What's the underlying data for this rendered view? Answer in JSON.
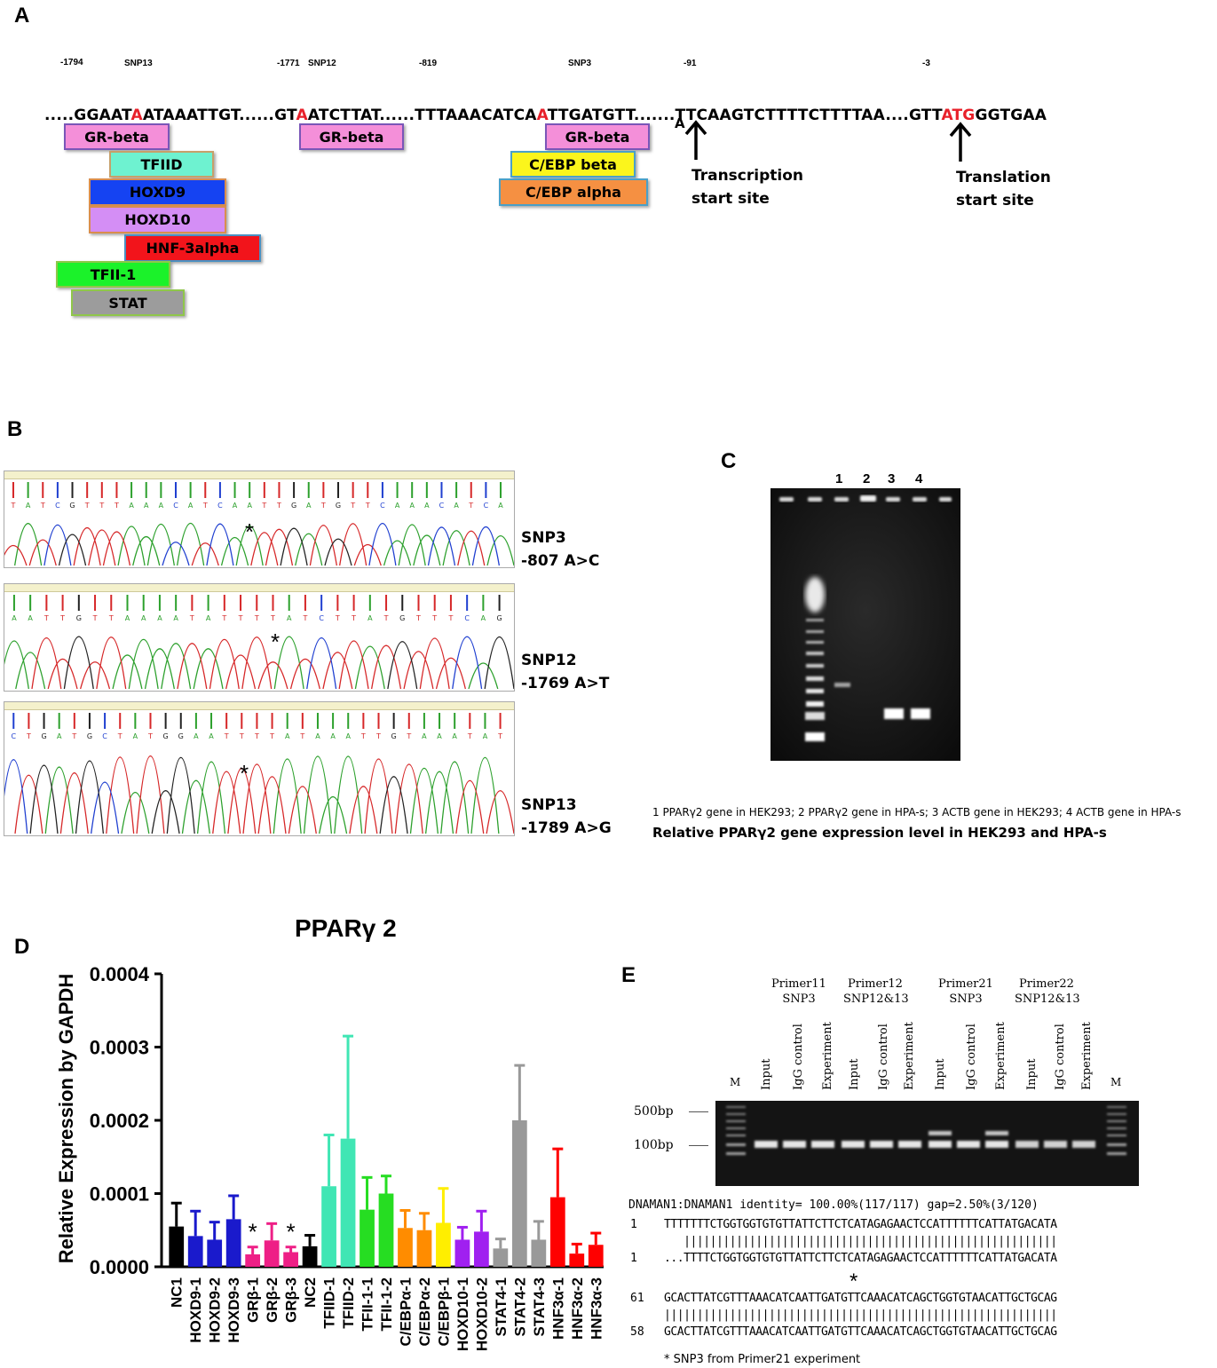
{
  "panelA": {
    "label": "A",
    "positions": [
      {
        "text": "-1794"
      },
      {
        "text": "SNP13"
      },
      {
        "text": "-1771"
      },
      {
        "text": "SNP12"
      },
      {
        "text": "-819"
      },
      {
        "text": "SNP3"
      },
      {
        "text": "-91"
      },
      {
        "text": "-3"
      }
    ],
    "sequence": [
      {
        "text": ".....GGAAT",
        "hl": false
      },
      {
        "text": "A",
        "hl": true
      },
      {
        "text": "ATAAATTGT......GT",
        "hl": false
      },
      {
        "text": "A",
        "hl": true
      },
      {
        "text": "ATCTTAT......TTTAAACATCA",
        "hl": false
      },
      {
        "text": "A",
        "hl": true
      },
      {
        "text": "TTGATGTT.......TTCAAGTCTTTTCTTTTAA....GTT",
        "hl": false
      },
      {
        "text": "ATG",
        "hl": true
      },
      {
        "text": "GGTGAA",
        "hl": false
      }
    ],
    "boxes": [
      {
        "label": "GR-beta",
        "color": "#f48fd9",
        "border": "#7a56b8"
      },
      {
        "label": "TFIID",
        "color": "#6ef2d0",
        "border": "#c7a06a"
      },
      {
        "label": "HOXD9",
        "color": "#1543f2",
        "border": "#d98e4e"
      },
      {
        "label": "HOXD10",
        "color": "#d48ef5",
        "border": "#d98e4e"
      },
      {
        "label": "HNF-3alpha",
        "color": "#f2141b",
        "border": "#4a90c2"
      },
      {
        "label": "TFII-1",
        "color": "#1bf22a",
        "border": "#8fc74a"
      },
      {
        "label": "STAT",
        "color": "#9c9c9c",
        "border": "#8fc74a"
      },
      {
        "label": "GR-beta",
        "color": "#f48fd9",
        "border": "#7a56b8"
      },
      {
        "label": "GR-beta",
        "color": "#f48fd9",
        "border": "#7a56b8"
      },
      {
        "label": "C/EBP beta",
        "color": "#fbf51c",
        "border": "#4aa0c8"
      },
      {
        "label": "C/EBP alpha",
        "color": "#f59042",
        "border": "#4aa0c8"
      }
    ],
    "tss_letter": "A",
    "tss_label_1": "Transcription",
    "tss_label_2": "start site",
    "tls_label_1": "Translation",
    "tls_label_2": "start site"
  },
  "panelB": {
    "label": "B",
    "traces": [
      {
        "name": "SNP3",
        "variant": "-807 A>C",
        "bases": "TATCGTTTAAACATCAATTGATGTTCAAACATCA"
      },
      {
        "name": "SNP12",
        "variant": "-1769 A>T",
        "bases": "AATTGTTAAAATATTTTATCTTATGTTTCAG"
      },
      {
        "name": "SNP13",
        "variant": "-1789 A>G",
        "bases": "CTGATGCTATGGAATTTTATAAATTGTAAATAT"
      }
    ],
    "star": "*"
  },
  "panelC": {
    "label": "C",
    "lanes": [
      "1",
      "2",
      "3",
      "4"
    ],
    "legend": "1 PPARγ2 gene in HEK293; 2 PPARγ2 gene in HPA-s; 3 ACTB gene in HEK293; 4 ACTB gene in HPA-s",
    "title": "Relative PPARγ2 gene expression level in HEK293 and HPA-s"
  },
  "panelD": {
    "label": "D",
    "chart_data": {
      "type": "bar",
      "title": "PPARγ 2",
      "ylabel": "Relative Expression by GAPDH",
      "xlabel": "",
      "ylim": [
        0,
        0.0004
      ],
      "yticks": [
        "0.0000",
        "0.0001",
        "0.0002",
        "0.0003",
        "0.0004"
      ],
      "categories": [
        "NC1",
        "HOXD9-1",
        "HOXD9-2",
        "HOXD9-3",
        "GRβ-1",
        "GRβ-2",
        "GRβ-3",
        "NC2",
        "TFIID-1",
        "TFIID-2",
        "TFII-1-1",
        "TFII-1-2",
        "C/EBPα-1",
        "C/EBPα-2",
        "C/EBPβ-1",
        "HOXD10-1",
        "HOXD10-2",
        "STAT4-1",
        "STAT4-2",
        "STAT4-3",
        "HNF3α-1",
        "HNF3α-2",
        "HNF3α-3"
      ],
      "values": [
        5.5e-05,
        4.2e-05,
        3.7e-05,
        6.5e-05,
        1.7e-05,
        3.6e-05,
        2e-05,
        2.8e-05,
        0.00011,
        0.000175,
        7.8e-05,
        0.0001,
        5.3e-05,
        5e-05,
        6e-05,
        3.7e-05,
        4.8e-05,
        2.5e-05,
        0.0002,
        3.7e-05,
        9.5e-05,
        1.8e-05,
        3e-05
      ],
      "errors": [
        3.2e-05,
        3.4e-05,
        2.4e-05,
        3.2e-05,
        1e-05,
        2.3e-05,
        7e-06,
        1.5e-05,
        7e-05,
        0.00014,
        4.4e-05,
        2.4e-05,
        2.4e-05,
        2.3e-05,
        4.7e-05,
        1.7e-05,
        2.8e-05,
        1.3e-05,
        7.5e-05,
        2.5e-05,
        6.6e-05,
        1.3e-05,
        1.6e-05
      ],
      "colors": [
        "#000000",
        "#1a1acc",
        "#1a1acc",
        "#1a1acc",
        "#ee1f86",
        "#ee1f86",
        "#ee1f86",
        "#000000",
        "#40e6b4",
        "#40e6b4",
        "#26dd22",
        "#26dd22",
        "#ff8c00",
        "#ff8c00",
        "#ffee00",
        "#a020f0",
        "#a020f0",
        "#999999",
        "#999999",
        "#999999",
        "#ff0000",
        "#ff0000",
        "#ff0000"
      ],
      "annotations": [
        {
          "category": "GRβ-1",
          "text": "*"
        },
        {
          "category": "GRβ-3",
          "text": "*"
        }
      ]
    }
  },
  "panelE": {
    "label": "E",
    "primers": [
      {
        "name": "Primer11",
        "snp": "SNP3"
      },
      {
        "name": "Primer12",
        "snp": "SNP12&13"
      },
      {
        "name": "Primer21",
        "snp": "SNP3"
      },
      {
        "name": "Primer22",
        "snp": "SNP12&13"
      }
    ],
    "marker": "M",
    "lane_names": [
      "Input",
      "IgG control",
      "Experiment"
    ],
    "size_500": "500bp",
    "size_100": "100bp",
    "align_header": "DNAMAN1:DNAMAN1 identity= 100.00%(117/117) gap=2.50%(3/120)",
    "rows": [
      {
        "num": "1",
        "seq": "TTTTTTTCTGGTGGTGTGTTATTCTTCTCATAGAGAACTCCATTTTTTCATTATGACATA"
      },
      {
        "num": "",
        "seq": "   |||||||||||||||||||||||||||||||||||||||||||||||||||||||||"
      },
      {
        "num": "1",
        "seq": "...TTTTCTGGTGGTGTGTTATTCTTCTCATAGAGAACTCCATTTTTTCATTATGACATA"
      },
      {
        "num": "61",
        "seq": "GCACTTATCGTTTAAACATCAATTGATGTTCAAACATCAGCTGGTGTAACATTGCTGCAG"
      },
      {
        "num": "",
        "seq": "||||||||||||||||||||||||||||||||||||||||||||||||||||||||||||"
      },
      {
        "num": "58",
        "seq": "GCACTTATCGTTTAAACATCAATTGATGTTCAAACATCAGCTGGTGTAACATTGCTGCAG"
      }
    ],
    "star": "*",
    "footnote": "* SNP3 from Primer21 experiment"
  }
}
